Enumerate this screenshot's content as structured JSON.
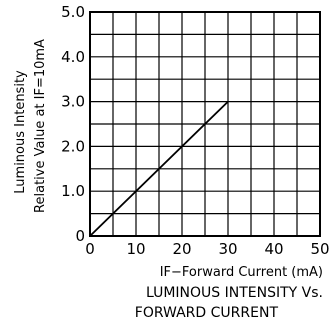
{
  "chart_data": {
    "type": "line",
    "x_axis": {
      "label": "IF−Forward Current (mA)",
      "range": [
        0,
        50
      ],
      "ticks": [
        "0",
        "10",
        "20",
        "30",
        "40",
        "50"
      ]
    },
    "y_axis": {
      "label_line1": "Luminous Intensity",
      "label_line2": "Relative Value at IF=10mA",
      "range": [
        0,
        5.0
      ],
      "ticks": [
        "0",
        "1.0",
        "2.0",
        "3.0",
        "4.0",
        "5.0"
      ]
    },
    "caption_line1": "LUMINOUS INTENSITY Vs.",
    "caption_line2": "FORWARD CURRENT",
    "grid": true,
    "series": [
      {
        "x": [
          0,
          30
        ],
        "y": [
          0,
          3.0
        ]
      }
    ]
  }
}
